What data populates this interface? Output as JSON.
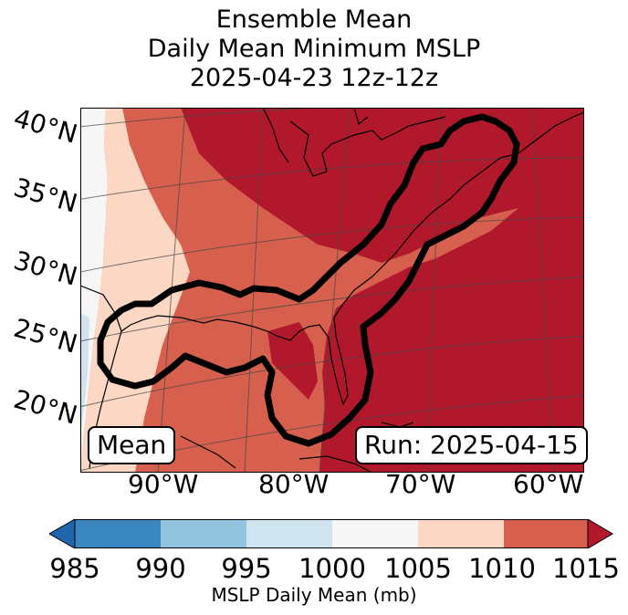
{
  "title": {
    "line1": "Ensemble Mean",
    "line2": "Daily Mean Minimum MSLP",
    "line3": "2025-04-23 12z-12z"
  },
  "map": {
    "lat_labels": [
      "40°N",
      "35°N",
      "30°N",
      "25°N",
      "20°N"
    ],
    "lon_labels": [
      "90°W",
      "80°W",
      "70°W",
      "60°W"
    ],
    "mean_box": "Mean",
    "run_box": "Run: 2025-04-15",
    "colors": {
      "c985": "#3a87bf",
      "c990": "#92c4df",
      "c995": "#d0e4f0",
      "c1000": "#f6f6f6",
      "c1005": "#fbd7c4",
      "c1010": "#d6604d",
      "c1015": "#b2182b",
      "c980": "#2166ac"
    }
  },
  "colorbar": {
    "ticks": [
      "985",
      "990",
      "995",
      "1000",
      "1005",
      "1010",
      "1015"
    ],
    "label": "MSLP Daily Mean (mb)"
  }
}
